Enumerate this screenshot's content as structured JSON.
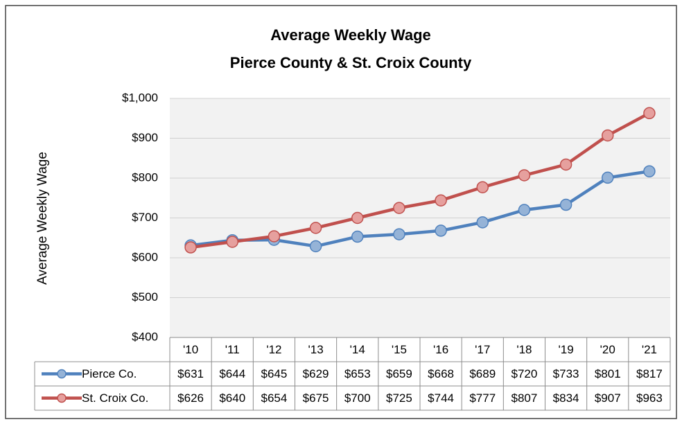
{
  "chart_data": {
    "type": "line",
    "title": "Average Weekly Wage",
    "subtitle": "Pierce County & St. Croix County",
    "y_label": "Average Weekly Wage",
    "categories": [
      "'10",
      "'11",
      "'12",
      "'13",
      "'14",
      "'15",
      "'16",
      "'17",
      "'18",
      "'19",
      "'20",
      "'21"
    ],
    "series": [
      {
        "name": "Pierce Co.",
        "color": "#4f81bd",
        "marker_color": "#95b3d7",
        "values": [
          631,
          644,
          645,
          629,
          653,
          659,
          668,
          689,
          720,
          733,
          801,
          817
        ],
        "value_labels": [
          "$631",
          "$644",
          "$645",
          "$629",
          "$653",
          "$659",
          "$668",
          "$689",
          "$720",
          "$733",
          "$801",
          "$817"
        ]
      },
      {
        "name": "St. Croix Co.",
        "color": "#c0504d",
        "marker_color": "#e6a09e",
        "values": [
          626,
          640,
          654,
          675,
          700,
          725,
          744,
          777,
          807,
          834,
          907,
          963
        ],
        "value_labels": [
          "$626",
          "$640",
          "$654",
          "$675",
          "$700",
          "$725",
          "$744",
          "$777",
          "$807",
          "$834",
          "$907",
          "$963"
        ]
      }
    ],
    "ylim": [
      400,
      1000
    ],
    "yticks": [
      {
        "value": 400,
        "label": "$400"
      },
      {
        "value": 500,
        "label": "$500"
      },
      {
        "value": 600,
        "label": "$600"
      },
      {
        "value": 700,
        "label": "$700"
      },
      {
        "value": 800,
        "label": "$800"
      },
      {
        "value": 900,
        "label": "$900"
      },
      {
        "value": 1000,
        "label": "$1,000"
      }
    ],
    "grid": true
  }
}
